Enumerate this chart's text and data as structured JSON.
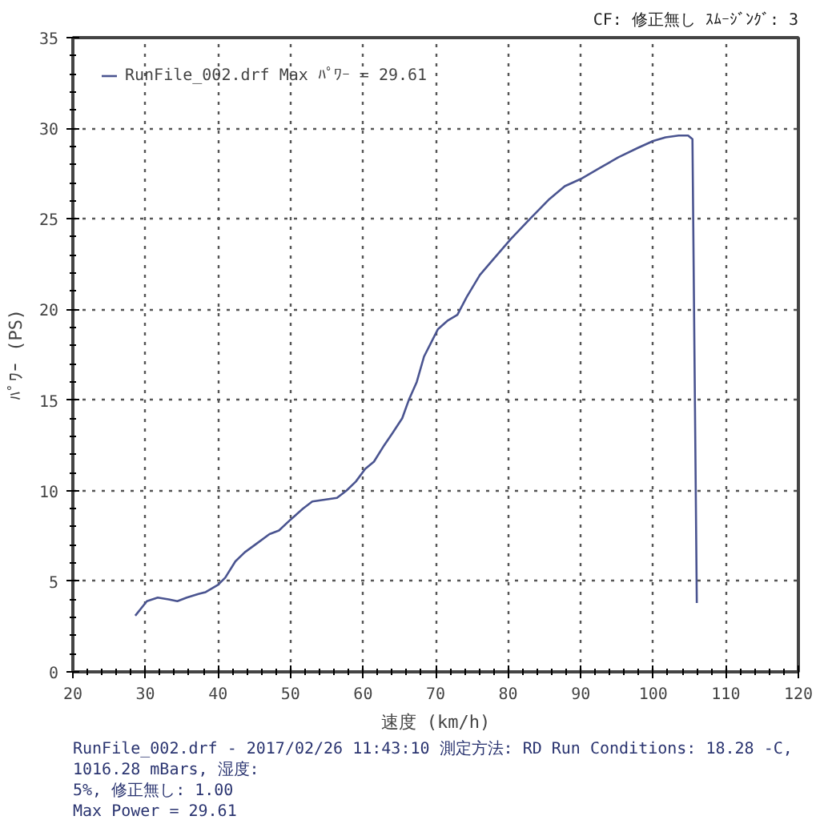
{
  "chart_data": {
    "type": "line",
    "xlabel": "速度 (km/h)",
    "ylabel": "ﾊﾟﾜｰ (PS)",
    "annotations": [
      "CF: 修正無し ｽﾑｰｼﾞﾝｸﾞ: 3",
      "RunFile_002.drf - 2017/02/26 11:43:10 測定方法: RD Run Conditions: 18.28 -C, 1016.28 mBars, 湿度:",
      "5%, 修正無し: 1.00",
      "Max Power = 29.61"
    ],
    "x": [
      28.6,
      30.2,
      31.7,
      33.2,
      34.4,
      35.7,
      37.3,
      38.3,
      40.0,
      41.0,
      42.4,
      43.7,
      45.4,
      47.1,
      48.4,
      50.0,
      51.7,
      53.0,
      54.7,
      56.4,
      57.7,
      59.0,
      60.3,
      61.5,
      62.9,
      64.1,
      65.4,
      66.3,
      67.4,
      68.4,
      70.3,
      71.7,
      73.0,
      74.3,
      76.1,
      77.8,
      80.4,
      83.0,
      85.7,
      87.8,
      90.0,
      92.6,
      95.2,
      97.8,
      100.0,
      101.7,
      103.5,
      104.8,
      105.4,
      106.0
    ],
    "series": [
      {
        "name": "RunFile_002.drf Max ﾊﾟﾜｰ = 29.61",
        "color": "#4a5490",
        "values": [
          3.1,
          3.9,
          4.1,
          4.0,
          3.9,
          4.1,
          4.3,
          4.4,
          4.8,
          5.2,
          6.1,
          6.6,
          7.1,
          7.6,
          7.8,
          8.4,
          9.0,
          9.4,
          9.5,
          9.6,
          10.0,
          10.5,
          11.2,
          11.6,
          12.5,
          13.2,
          14.0,
          15.0,
          16.0,
          17.4,
          18.9,
          19.4,
          19.7,
          20.7,
          21.9,
          22.7,
          23.9,
          25.0,
          26.1,
          26.8,
          27.2,
          27.8,
          28.4,
          28.9,
          29.3,
          29.5,
          29.6,
          29.6,
          29.4,
          3.8
        ]
      }
    ],
    "xlim": [
      20,
      120
    ],
    "ylim": [
      0,
      35
    ],
    "xticks": [
      20,
      30,
      40,
      50,
      60,
      70,
      80,
      90,
      100,
      110,
      120
    ],
    "yticks": [
      0,
      5,
      10,
      15,
      20,
      25,
      30,
      35
    ],
    "grid": true,
    "legend": "top left"
  }
}
